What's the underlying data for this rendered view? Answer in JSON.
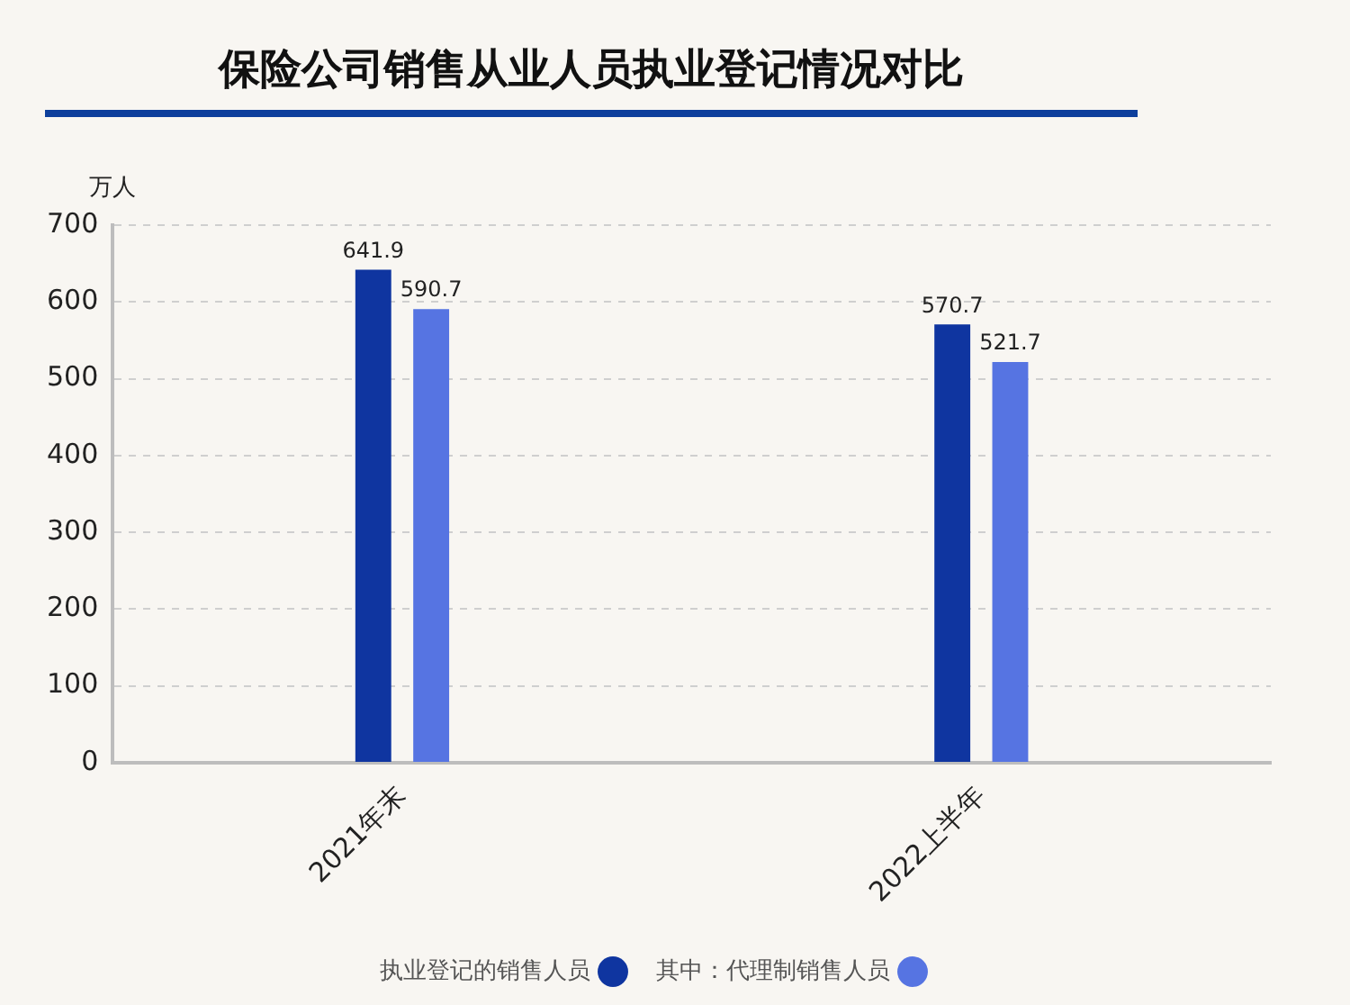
{
  "chart_data": {
    "type": "bar",
    "title": "保险公司销售从业人员执业登记情况对比",
    "ylabel": "万人",
    "categories": [
      "2021年末",
      "2022上半年"
    ],
    "series": [
      {
        "name": "执业登记的销售人员",
        "color": "#0f35a0",
        "values": [
          641.9,
          570.7
        ]
      },
      {
        "name": "其中：代理制销售人员",
        "color": "#5674e2",
        "values": [
          590.7,
          521.7
        ]
      }
    ],
    "ylim": [
      0,
      700
    ],
    "yticks": [
      0,
      100,
      200,
      300,
      400,
      500,
      600,
      700
    ],
    "grid": "y",
    "legend": "bottom",
    "data_labels": true
  }
}
